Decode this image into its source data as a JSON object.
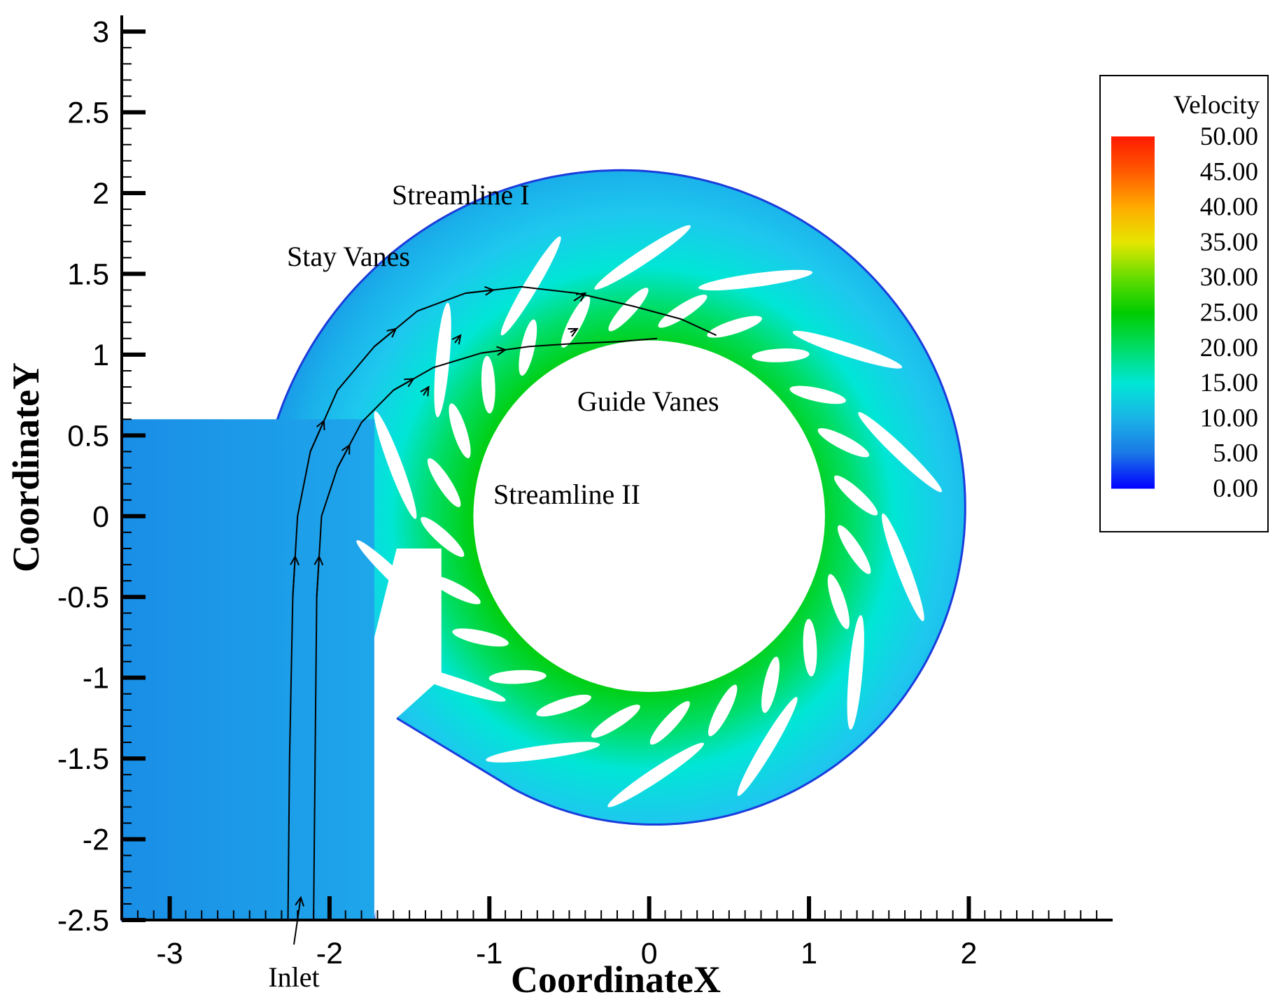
{
  "chart_data": {
    "type": "heatmap",
    "title": "",
    "xlabel": "CoordinateX",
    "ylabel": "CoordinateY",
    "xlim": [
      -3.3,
      2.9
    ],
    "ylim": [
      -2.5,
      3.1
    ],
    "x_ticks": [
      -3,
      -2,
      -1,
      0,
      1,
      2
    ],
    "x_tick_labels": [
      "-3",
      "-2",
      "-1",
      "0",
      "1",
      "2"
    ],
    "y_ticks": [
      -2.5,
      -2,
      -1.5,
      -1,
      -0.5,
      0,
      0.5,
      1,
      1.5,
      2,
      2.5,
      3
    ],
    "y_tick_labels": [
      "-2.5",
      "-2",
      "-1.5",
      "-1",
      "-0.5",
      "0",
      "0.5",
      "1",
      "1.5",
      "2",
      "2.5",
      "3"
    ],
    "grid": false,
    "colorbar": {
      "title": "Velocity",
      "placement": "right",
      "range": [
        0,
        50
      ],
      "levels": [
        "50.00",
        "45.00",
        "40.00",
        "35.00",
        "30.00",
        "25.00",
        "20.00",
        "15.00",
        "10.00",
        "5.00",
        "0.00"
      ],
      "colors": [
        "#ff1a00",
        "#ff5a00",
        "#ffaa00",
        "#e6e600",
        "#66dd00",
        "#00cc00",
        "#00dd66",
        "#00e6d6",
        "#1ab4e6",
        "#1a78e6",
        "#0000ff"
      ]
    },
    "geometry": {
      "inner_radius": 1.1,
      "outer_radius": 2.5,
      "spiral_center": [
        0.28,
        0.31
      ],
      "stay_vane_count": 14,
      "guide_vane_count": 24,
      "inlet_x_range": [
        -3.3,
        -1.72
      ]
    },
    "streamlines": [
      {
        "name": "Streamline I",
        "x": [
          -2.26,
          -2.25,
          -2.23,
          -2.2,
          -2.12,
          -1.95,
          -1.72,
          -1.45,
          -1.15,
          -0.8,
          -0.45,
          -0.1,
          0.2,
          0.42
        ],
        "y": [
          -2.5,
          -1.5,
          -0.5,
          0.0,
          0.4,
          0.78,
          1.05,
          1.27,
          1.38,
          1.42,
          1.38,
          1.3,
          1.22,
          1.12
        ]
      },
      {
        "name": "Streamline II",
        "x": [
          -2.1,
          -2.09,
          -2.08,
          -2.05,
          -1.95,
          -1.8,
          -1.6,
          -1.35,
          -1.05,
          -0.75,
          -0.45,
          -0.2,
          0.05
        ],
        "y": [
          -2.5,
          -1.5,
          -0.5,
          0.0,
          0.3,
          0.58,
          0.78,
          0.92,
          1.01,
          1.05,
          1.07,
          1.08,
          1.1
        ]
      }
    ],
    "annotations": [
      {
        "text": "Streamline I",
        "target": [
          -0.4,
          1.38
        ]
      },
      {
        "text": "Stay Vanes",
        "target": [
          -1.18,
          1.12
        ]
      },
      {
        "text": "Guide Vanes",
        "target": [
          -0.45,
          1.16
        ]
      },
      {
        "text": "Streamline II",
        "target": [
          -1.38,
          0.8
        ]
      },
      {
        "text": "Inlet",
        "target": [
          -2.18,
          -2.36
        ]
      }
    ]
  }
}
